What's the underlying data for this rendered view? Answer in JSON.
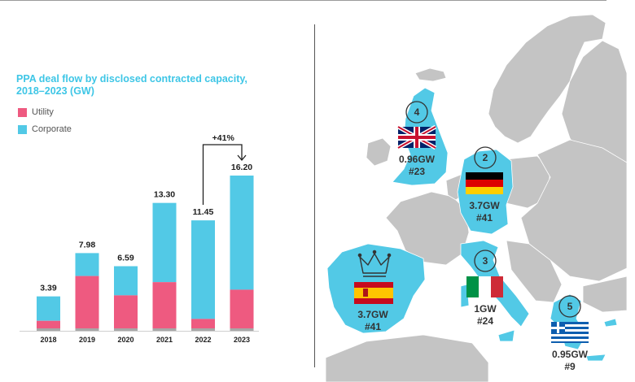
{
  "colors": {
    "utility": "#ee5a80",
    "corporate": "#52c9e6",
    "base": "#a7a7a7",
    "title": "#3ec6e6",
    "map_land": "#c4c4c4",
    "map_highlight": "#52c9e6"
  },
  "chart_data": {
    "type": "bar",
    "title": "PPA deal flow by disclosed contracted capacity, 2018–2023 (GW)",
    "categories": [
      "2018",
      "2019",
      "2020",
      "2021",
      "2022",
      "2023"
    ],
    "series": [
      {
        "name": "Utility",
        "values": [
          0.8,
          5.55,
          3.5,
          4.9,
          1.0,
          4.1
        ]
      },
      {
        "name": "Corporate",
        "values": [
          2.59,
          2.43,
          3.09,
          8.4,
          10.45,
          12.1
        ]
      }
    ],
    "totals": [
      "3.39",
      "7.98",
      "6.59",
      "13.30",
      "11.45",
      "16.20"
    ],
    "annotation": "+41%",
    "annotation_from": "2022",
    "annotation_to": "2023",
    "ylim": [
      0,
      16.2
    ],
    "legend_position": "top-left",
    "grid": false
  },
  "map": {
    "markers": [
      {
        "country": "United Kingdom",
        "rank": "4",
        "capacity": "0.96GW",
        "deals": "#23",
        "flag": "uk-flag-icon"
      },
      {
        "country": "Germany",
        "rank": "2",
        "capacity": "3.7GW",
        "deals": "#41",
        "flag": "germany-flag-icon"
      },
      {
        "country": "Italy",
        "rank": "3",
        "capacity": "1GW",
        "deals": "#24",
        "flag": "italy-flag-icon"
      },
      {
        "country": "Spain",
        "rank": "crown-icon",
        "capacity": "3.7GW",
        "deals": "#41",
        "flag": "spain-flag-icon"
      },
      {
        "country": "Greece",
        "rank": "5",
        "capacity": "0.95GW",
        "deals": "#9",
        "flag": "greece-flag-icon"
      }
    ]
  }
}
